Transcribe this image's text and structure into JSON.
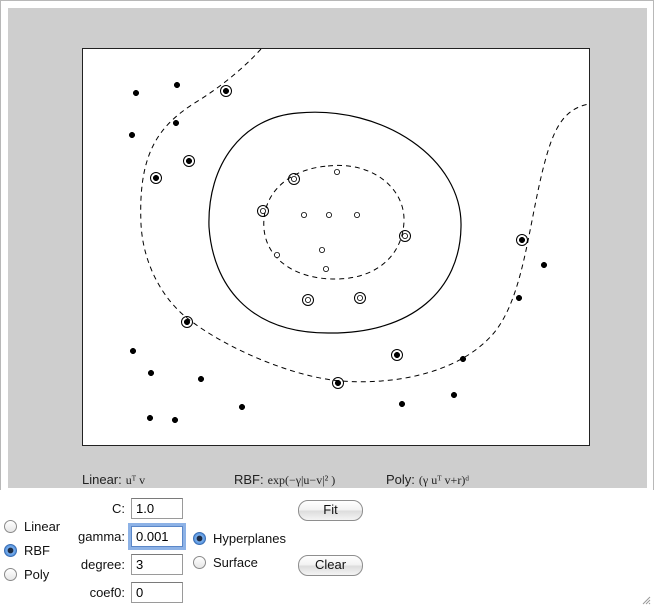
{
  "kernels": {
    "linear": {
      "name": "Linear:",
      "formula": "uᵀ v"
    },
    "rbf": {
      "name": "RBF:",
      "formula": "exp(−γ|u−v|² )"
    },
    "poly": {
      "name": "Poly:",
      "formula": "(γ uᵀ v+r)ᵈ"
    }
  },
  "kernel_options": [
    {
      "label": "Linear",
      "checked": false
    },
    {
      "label": "RBF",
      "checked": true
    },
    {
      "label": "Poly",
      "checked": false
    }
  ],
  "params": {
    "c": {
      "label": "C:",
      "value": "1.0"
    },
    "gamma": {
      "label": "gamma:",
      "value": "0.001"
    },
    "degree": {
      "label": "degree:",
      "value": "3"
    },
    "coef0": {
      "label": "coef0:",
      "value": "0"
    }
  },
  "display_options": [
    {
      "label": "Hyperplanes",
      "checked": true
    },
    {
      "label": "Surface",
      "checked": false
    }
  ],
  "buttons": {
    "fit": "Fit",
    "clear": "Clear"
  },
  "colors": {
    "panel": "#cecece",
    "accent": "#3f84d6",
    "point": "#000000"
  }
}
